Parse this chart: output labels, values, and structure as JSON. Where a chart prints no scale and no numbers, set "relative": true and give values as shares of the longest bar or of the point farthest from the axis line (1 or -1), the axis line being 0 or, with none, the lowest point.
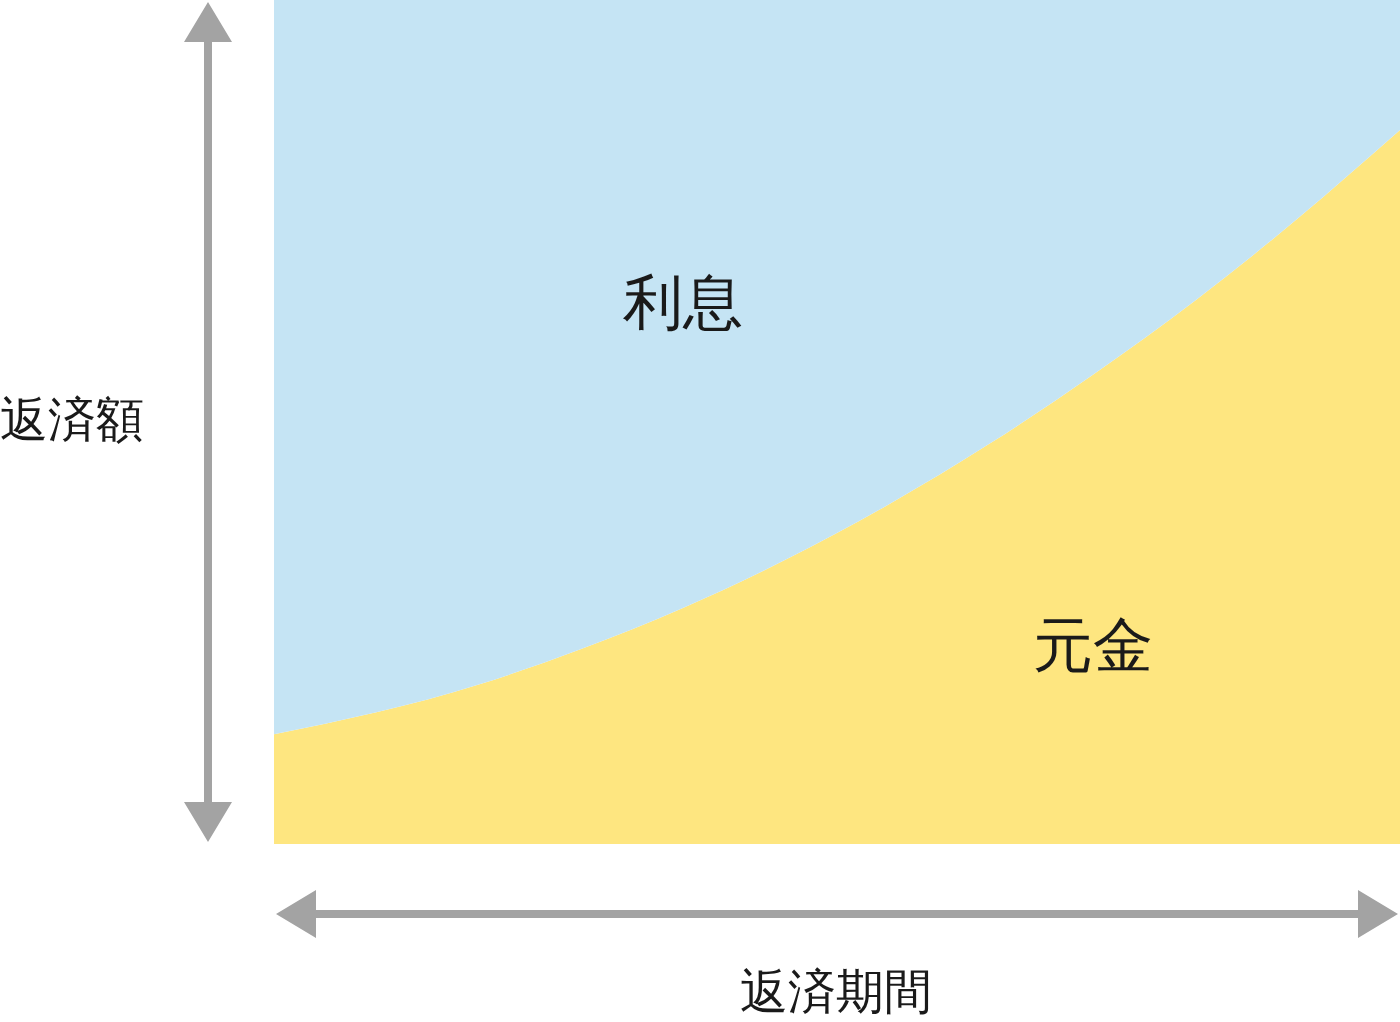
{
  "chart_data": {
    "type": "area",
    "stacked": true,
    "relative": true,
    "categories": [
      null,
      null,
      null,
      null,
      null,
      null,
      null,
      null,
      null,
      null,
      null,
      null
    ],
    "xlabel": "返済期間",
    "ylabel": "返済額",
    "series": [
      {
        "name": "元金",
        "color": "#fee680",
        "values": [
          0.13,
          0.156,
          0.189,
          0.231,
          0.28,
          0.337,
          0.402,
          0.475,
          0.556,
          0.644,
          0.741,
          0.846
        ]
      },
      {
        "name": "利息",
        "color": "#c5e4f4",
        "values": [
          0.87,
          0.844,
          0.811,
          0.769,
          0.72,
          0.663,
          0.598,
          0.525,
          0.444,
          0.356,
          0.259,
          0.154
        ]
      }
    ]
  }
}
